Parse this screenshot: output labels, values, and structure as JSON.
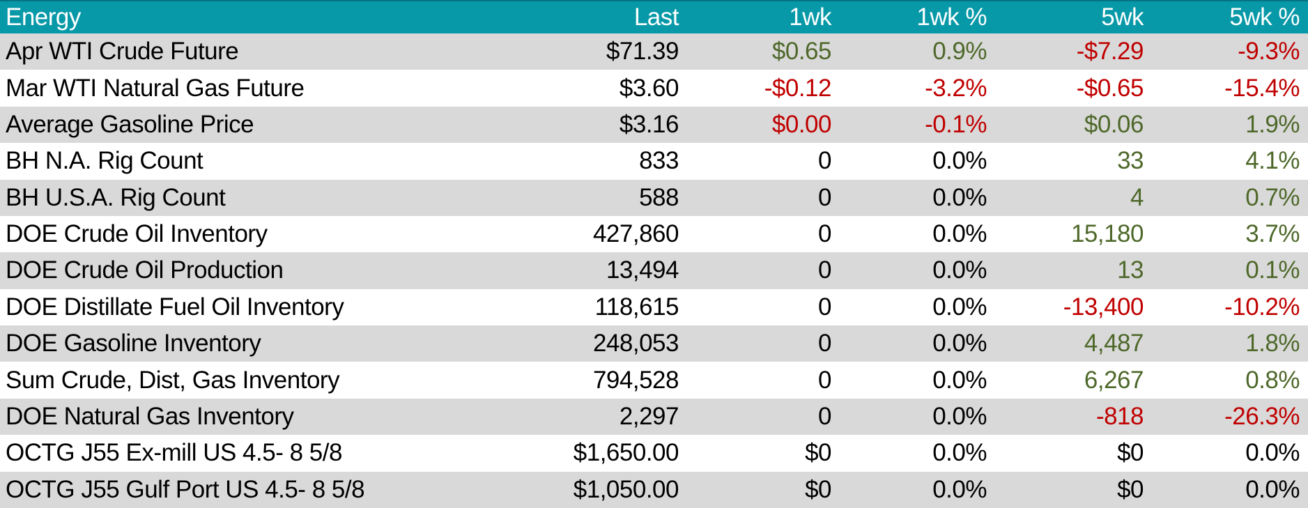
{
  "colors": {
    "header_bg": "#0899A8",
    "header_top_border": "#047482",
    "header_text": "#FFFFFF",
    "row_alt": "#D9D9D9",
    "row_base": "#FFFFFF",
    "positive": "#4E682A",
    "negative": "#C00000",
    "neutral": "#000000"
  },
  "table": {
    "columns": [
      {
        "key": "energy",
        "label": "Energy",
        "align": "left"
      },
      {
        "key": "last",
        "label": "Last",
        "align": "right"
      },
      {
        "key": "wk1",
        "label": "1wk",
        "align": "right"
      },
      {
        "key": "wk1pct",
        "label": "1wk %",
        "align": "right"
      },
      {
        "key": "wk5",
        "label": "5wk",
        "align": "right"
      },
      {
        "key": "wk5pct",
        "label": "5wk %",
        "align": "right"
      }
    ],
    "rows": [
      {
        "label": "Apr WTI Crude Future",
        "values": [
          {
            "text": "$71.39",
            "tone": "neutral"
          },
          {
            "text": "$0.65",
            "tone": "pos"
          },
          {
            "text": "0.9%",
            "tone": "pos"
          },
          {
            "text": "-$7.29",
            "tone": "neg"
          },
          {
            "text": "-9.3%",
            "tone": "neg"
          }
        ]
      },
      {
        "label": "Mar WTI Natural Gas Future",
        "values": [
          {
            "text": "$3.60",
            "tone": "neutral"
          },
          {
            "text": "-$0.12",
            "tone": "neg"
          },
          {
            "text": "-3.2%",
            "tone": "neg"
          },
          {
            "text": "-$0.65",
            "tone": "neg"
          },
          {
            "text": "-15.4%",
            "tone": "neg"
          }
        ]
      },
      {
        "label": "Average Gasoline Price",
        "values": [
          {
            "text": "$3.16",
            "tone": "neutral"
          },
          {
            "text": "$0.00",
            "tone": "neg"
          },
          {
            "text": "-0.1%",
            "tone": "neg"
          },
          {
            "text": "$0.06",
            "tone": "pos"
          },
          {
            "text": "1.9%",
            "tone": "pos"
          }
        ]
      },
      {
        "label": "BH N.A. Rig Count",
        "values": [
          {
            "text": "833",
            "tone": "neutral"
          },
          {
            "text": "0",
            "tone": "neutral"
          },
          {
            "text": "0.0%",
            "tone": "neutral"
          },
          {
            "text": "33",
            "tone": "pos"
          },
          {
            "text": "4.1%",
            "tone": "pos"
          }
        ]
      },
      {
        "label": "BH U.S.A. Rig Count",
        "values": [
          {
            "text": "588",
            "tone": "neutral"
          },
          {
            "text": "0",
            "tone": "neutral"
          },
          {
            "text": "0.0%",
            "tone": "neutral"
          },
          {
            "text": "4",
            "tone": "pos"
          },
          {
            "text": "0.7%",
            "tone": "pos"
          }
        ]
      },
      {
        "label": "DOE Crude Oil Inventory",
        "values": [
          {
            "text": "427,860",
            "tone": "neutral"
          },
          {
            "text": "0",
            "tone": "neutral"
          },
          {
            "text": "0.0%",
            "tone": "neutral"
          },
          {
            "text": "15,180",
            "tone": "pos"
          },
          {
            "text": "3.7%",
            "tone": "pos"
          }
        ]
      },
      {
        "label": "DOE Crude Oil Production",
        "values": [
          {
            "text": "13,494",
            "tone": "neutral"
          },
          {
            "text": "0",
            "tone": "neutral"
          },
          {
            "text": "0.0%",
            "tone": "neutral"
          },
          {
            "text": "13",
            "tone": "pos"
          },
          {
            "text": "0.1%",
            "tone": "pos"
          }
        ]
      },
      {
        "label": "DOE Distillate Fuel Oil Inventory",
        "values": [
          {
            "text": "118,615",
            "tone": "neutral"
          },
          {
            "text": "0",
            "tone": "neutral"
          },
          {
            "text": "0.0%",
            "tone": "neutral"
          },
          {
            "text": "-13,400",
            "tone": "neg"
          },
          {
            "text": "-10.2%",
            "tone": "neg"
          }
        ]
      },
      {
        "label": "DOE Gasoline Inventory",
        "values": [
          {
            "text": "248,053",
            "tone": "neutral"
          },
          {
            "text": "0",
            "tone": "neutral"
          },
          {
            "text": "0.0%",
            "tone": "neutral"
          },
          {
            "text": "4,487",
            "tone": "pos"
          },
          {
            "text": "1.8%",
            "tone": "pos"
          }
        ]
      },
      {
        "label": "Sum Crude, Dist, Gas Inventory",
        "values": [
          {
            "text": "794,528",
            "tone": "neutral"
          },
          {
            "text": "0",
            "tone": "neutral"
          },
          {
            "text": "0.0%",
            "tone": "neutral"
          },
          {
            "text": "6,267",
            "tone": "pos"
          },
          {
            "text": "0.8%",
            "tone": "pos"
          }
        ]
      },
      {
        "label": "DOE Natural Gas Inventory",
        "values": [
          {
            "text": "2,297",
            "tone": "neutral"
          },
          {
            "text": "0",
            "tone": "neutral"
          },
          {
            "text": "0.0%",
            "tone": "neutral"
          },
          {
            "text": "-818",
            "tone": "neg"
          },
          {
            "text": "-26.3%",
            "tone": "neg"
          }
        ]
      },
      {
        "label": "OCTG J55 Ex-mill US 4.5- 8 5/8",
        "values": [
          {
            "text": "$1,650.00",
            "tone": "neutral"
          },
          {
            "text": "$0",
            "tone": "neutral"
          },
          {
            "text": "0.0%",
            "tone": "neutral"
          },
          {
            "text": "$0",
            "tone": "neutral"
          },
          {
            "text": "0.0%",
            "tone": "neutral"
          }
        ]
      },
      {
        "label": "OCTG J55 Gulf Port US 4.5- 8 5/8",
        "values": [
          {
            "text": "$1,050.00",
            "tone": "neutral"
          },
          {
            "text": "$0",
            "tone": "neutral"
          },
          {
            "text": "0.0%",
            "tone": "neutral"
          },
          {
            "text": "$0",
            "tone": "neutral"
          },
          {
            "text": "0.0%",
            "tone": "neutral"
          }
        ]
      }
    ]
  }
}
